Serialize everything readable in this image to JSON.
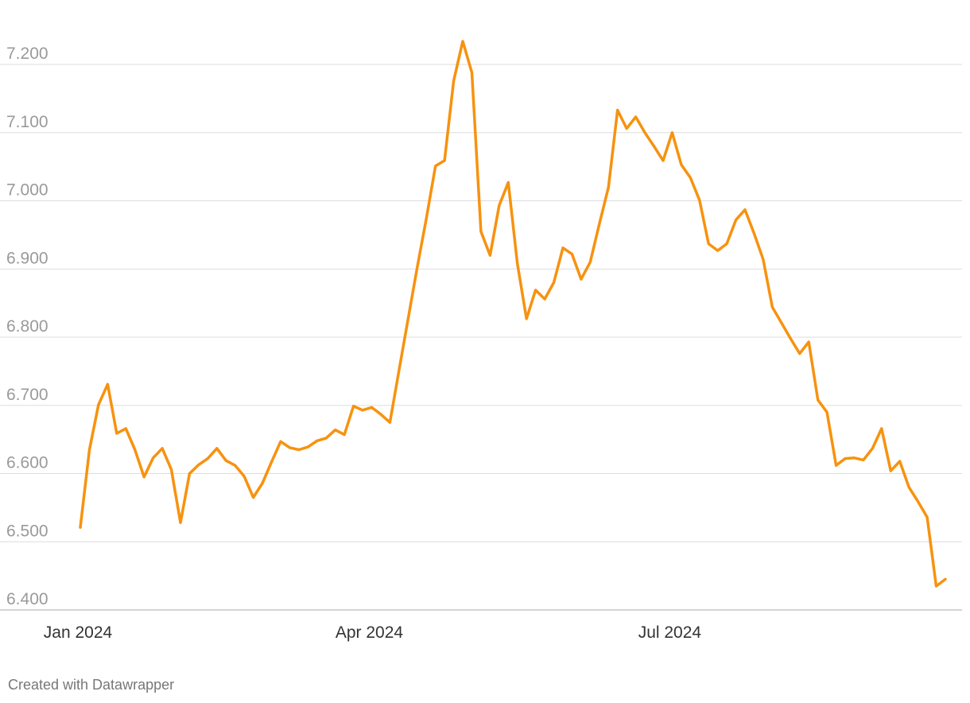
{
  "chart_data": {
    "type": "line",
    "categories": [
      "Jan 2024",
      null,
      null,
      null,
      null,
      null,
      null,
      null,
      null,
      null,
      null,
      null,
      null,
      null,
      null,
      null,
      null,
      null,
      null,
      null,
      null,
      null,
      null,
      null,
      null,
      null,
      null,
      null,
      null,
      null,
      null,
      null,
      "Apr 2024",
      null,
      null,
      null,
      null,
      null,
      null,
      null,
      null,
      null,
      null,
      null,
      null,
      null,
      null,
      null,
      null,
      null,
      null,
      null,
      null,
      null,
      null,
      null,
      null,
      null,
      null,
      null,
      null,
      null,
      null,
      null,
      null,
      "Jul 2024",
      null,
      null,
      null,
      null,
      null,
      null,
      null,
      null,
      null,
      null,
      null,
      null,
      null,
      null,
      null,
      null,
      null,
      null,
      null,
      null,
      null,
      null,
      null,
      null,
      null,
      null,
      null,
      null,
      null,
      null
    ],
    "series": [
      {
        "color": "#f7920f",
        "values": [
          6.521,
          6.635,
          6.701,
          6.731,
          6.659,
          6.666,
          6.635,
          6.595,
          6.623,
          6.637,
          6.606,
          6.528,
          6.6,
          6.613,
          6.622,
          6.637,
          6.619,
          6.612,
          6.596,
          6.565,
          6.586,
          6.617,
          6.647,
          6.638,
          6.635,
          6.639,
          6.648,
          6.652,
          6.664,
          6.657,
          6.699,
          6.693,
          6.697,
          6.687,
          6.675,
          6.751,
          6.827,
          6.902,
          6.974,
          7.051,
          7.059,
          7.176,
          7.234,
          7.188,
          6.955,
          6.92,
          6.993,
          7.027,
          6.908,
          6.827,
          6.869,
          6.856,
          6.88,
          6.931,
          6.922,
          6.885,
          6.91,
          6.966,
          7.02,
          7.133,
          7.106,
          7.123,
          7.1,
          7.08,
          7.059,
          7.1,
          7.053,
          7.034,
          7.001,
          6.937,
          6.927,
          6.937,
          6.972,
          6.987,
          6.952,
          6.914,
          6.844,
          6.821,
          6.798,
          6.776,
          6.793,
          6.708,
          6.69,
          6.612,
          6.622,
          6.623,
          6.62,
          6.637,
          6.666,
          6.604,
          6.618,
          6.58,
          6.559,
          6.536,
          6.435,
          6.445
        ]
      }
    ],
    "ylim": [
      6.4,
      7.27
    ],
    "yticks": [
      {
        "value": 6.4,
        "label": "6.400"
      },
      {
        "value": 6.5,
        "label": "6.500"
      },
      {
        "value": 6.6,
        "label": "6.600"
      },
      {
        "value": 6.7,
        "label": "6.700"
      },
      {
        "value": 6.8,
        "label": "6.800"
      },
      {
        "value": 6.9,
        "label": "6.900"
      },
      {
        "value": 7.0,
        "label": "7.000"
      },
      {
        "value": 7.1,
        "label": "7.100"
      },
      {
        "value": 7.2,
        "label": "7.200"
      }
    ],
    "grid": true,
    "footer": "Created with Datawrapper"
  }
}
